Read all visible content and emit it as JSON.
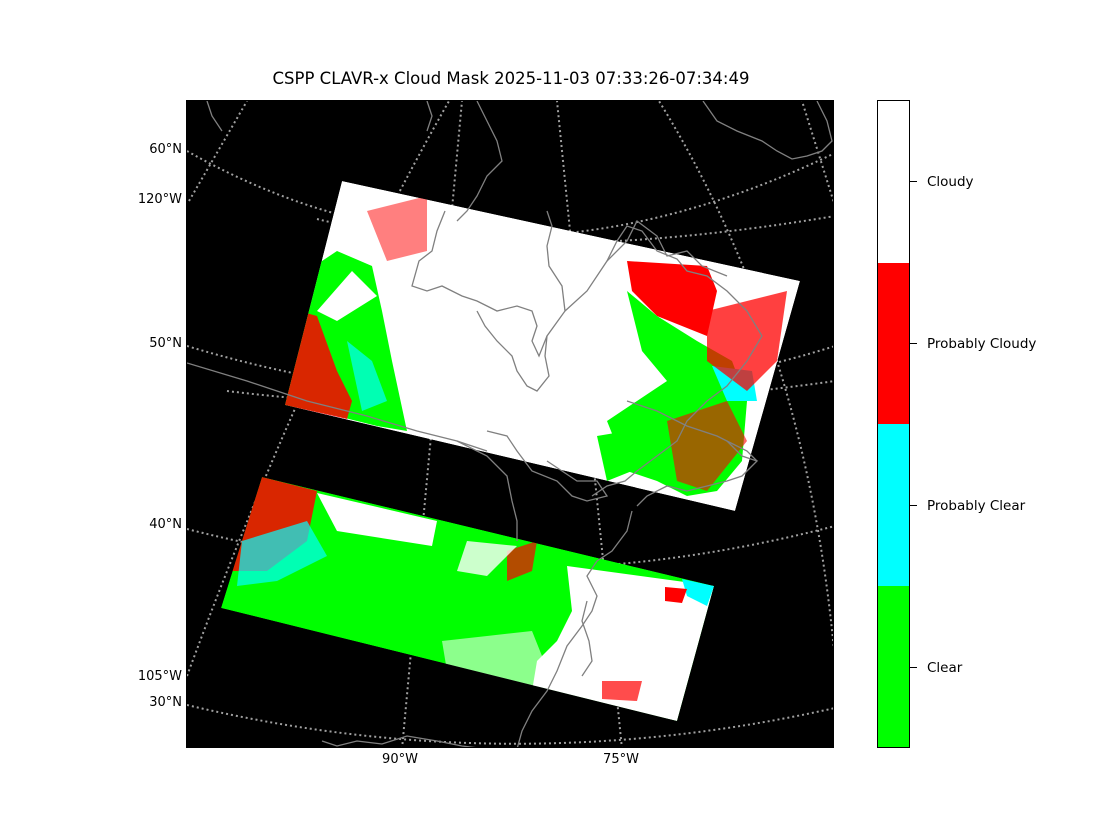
{
  "title": "CSPP CLAVR-x Cloud Mask 2025-11-03 07:33:26-07:34:49",
  "map": {
    "background_color": "#000000",
    "coastline_color": "#808080",
    "graticule_color": "#a0a0a0",
    "left_labels": [
      "60°N",
      "120°W",
      "50°N",
      "40°N",
      "105°W",
      "30°N"
    ],
    "bottom_labels": [
      "90°W",
      "75°W"
    ]
  },
  "legend": {
    "categories": [
      {
        "label": "Cloudy",
        "color": "#ffffff"
      },
      {
        "label": "Probably Cloudy",
        "color": "#ff0000"
      },
      {
        "label": "Probably Clear",
        "color": "#00ffff"
      },
      {
        "label": "Clear",
        "color": "#00ff00"
      }
    ]
  }
}
